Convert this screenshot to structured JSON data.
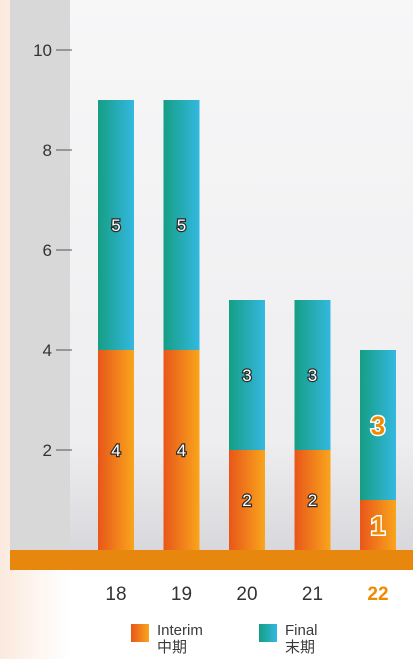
{
  "chart_data": {
    "type": "bar",
    "stacked": true,
    "categories": [
      "18",
      "19",
      "20",
      "21",
      "22"
    ],
    "highlight_category": "22",
    "series": [
      {
        "name": "Interim",
        "name_jp": "中期",
        "values": [
          4,
          4,
          2,
          2,
          1
        ]
      },
      {
        "name": "Final",
        "name_jp": "末期",
        "values": [
          5,
          5,
          3,
          3,
          3
        ]
      }
    ],
    "yticks": [
      2,
      4,
      6,
      8,
      10
    ],
    "ylim": [
      0,
      10
    ],
    "colors": {
      "interim_light": "#f7a11c",
      "interim_dark": "#e8561a",
      "final_light": "#2fb4dc",
      "final_dark": "#18a38f",
      "axis_band": "#e8870e",
      "highlight_text": "#f08a00"
    }
  }
}
